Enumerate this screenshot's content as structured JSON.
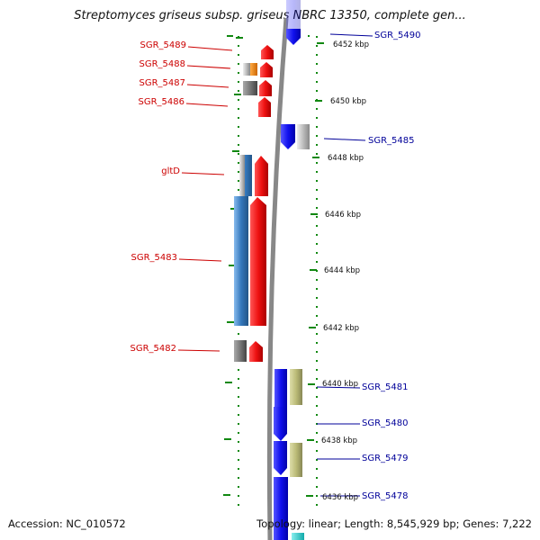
{
  "title": "Streptomyces griseus subsp. griseus NBRC 13350, complete gen...",
  "footer": {
    "accession": "Accession: NC_010572",
    "summary": "Topology: linear; Length: 8,545,929 bp; Genes: 7,222"
  },
  "scale_ticks": [
    "6452 kbp",
    "6450 kbp",
    "6448 kbp",
    "6446 kbp",
    "6444 kbp",
    "6442 kbp",
    "6440 kbp",
    "6438 kbp",
    "6436 kbp"
  ],
  "left_labels": [
    "SGR_5489",
    "SGR_5488",
    "SGR_5487",
    "SGR_5486",
    "gltD",
    "SGR_5483",
    "SGR_5482"
  ],
  "right_labels": [
    "SGR_5490",
    "SGR_5485",
    "SGR_5481",
    "SGR_5480",
    "SGR_5479",
    "SGR_5478"
  ],
  "colors": {
    "forward_gene": "#ee1111",
    "reverse_gene": "#1111ee",
    "left_label": "#cc0000",
    "right_label": "#000099",
    "tick_dots": "#118811",
    "backbone": "#888888",
    "feature_blue": "#3377bb",
    "feature_gray": "#888888",
    "feature_orange": "#ee8800",
    "feature_olive": "#bbbb77",
    "feature_cyan": "#22cccc"
  }
}
